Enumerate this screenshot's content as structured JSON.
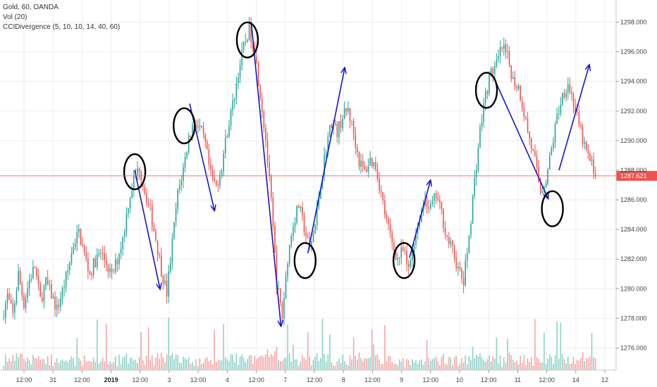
{
  "legend": {
    "symbol": "Gold, 60, OANDA",
    "volume": "Vol (20)",
    "indicator": "CCIDivergence (5, 10, 10, 14, 40, 60)"
  },
  "colors": {
    "up": "#26a69a",
    "down": "#ef5350",
    "vol_up": "#8fd2c8",
    "vol_down": "#f4a7a7",
    "arrow": "#1515c8",
    "circle": "#000000",
    "price_line": "#ef5350",
    "grid": "#eeeeee"
  },
  "chart_data": {
    "type": "candlestick",
    "title": "",
    "ylim": [
      1274.5,
      1299.5
    ],
    "y_ticks": [
      1276,
      1278,
      1280,
      1282,
      1284,
      1286,
      1288,
      1290,
      1292,
      1294,
      1296,
      1298
    ],
    "x_tick_labels": [
      {
        "label": "12:00",
        "bold": false
      },
      {
        "label": "31",
        "bold": false
      },
      {
        "label": "12:00",
        "bold": false
      },
      {
        "label": "2019",
        "bold": true
      },
      {
        "label": "12:00",
        "bold": false
      },
      {
        "label": "3",
        "bold": false
      },
      {
        "label": "12:00",
        "bold": false
      },
      {
        "label": "4",
        "bold": false
      },
      {
        "label": "12:00",
        "bold": false
      },
      {
        "label": "7",
        "bold": false
      },
      {
        "label": "12:00",
        "bold": false
      },
      {
        "label": "8",
        "bold": false
      },
      {
        "label": "12:00",
        "bold": false
      },
      {
        "label": "9",
        "bold": false
      },
      {
        "label": "12:00",
        "bold": false
      },
      {
        "label": "10",
        "bold": false
      },
      {
        "label": "12:00",
        "bold": false
      },
      {
        "label": "11",
        "bold": false
      },
      {
        "label": "12:00",
        "bold": false
      },
      {
        "label": "14",
        "bold": false
      },
      {
        "label": "12",
        "bold": false
      }
    ],
    "last_price": "1287.621",
    "last_price_value": 1287.621,
    "close_path": [
      1278.0,
      1279.5,
      1278.2,
      1281.0,
      1279.0,
      1280.6,
      1281.5,
      1279.2,
      1280.4,
      1279.6,
      1278.6,
      1279.8,
      1281.2,
      1283.0,
      1283.8,
      1282.3,
      1281.0,
      1281.9,
      1282.4,
      1281.7,
      1280.8,
      1282.0,
      1283.4,
      1285.8,
      1287.4,
      1288.2,
      1286.6,
      1285.2,
      1283.4,
      1281.3,
      1279.7,
      1283.1,
      1286.4,
      1288.1,
      1290.2,
      1291.3,
      1290.8,
      1289.7,
      1287.6,
      1286.9,
      1288.3,
      1290.7,
      1292.4,
      1294.6,
      1296.3,
      1297.6,
      1296.1,
      1293.2,
      1290.1,
      1285.8,
      1280.4,
      1278.1,
      1282.1,
      1284.4,
      1285.6,
      1284.1,
      1282.6,
      1284.3,
      1287.1,
      1289.6,
      1291.3,
      1290.6,
      1291.6,
      1292.1,
      1290.5,
      1288.6,
      1287.9,
      1288.7,
      1288.3,
      1286.4,
      1284.5,
      1283.1,
      1282.0,
      1282.6,
      1281.2,
      1283.3,
      1284.8,
      1286.1,
      1285.4,
      1286.3,
      1285.1,
      1283.4,
      1282.6,
      1281.3,
      1280.4,
      1283.6,
      1287.3,
      1290.7,
      1293.1,
      1294.6,
      1295.1,
      1296.3,
      1295.6,
      1294.1,
      1293.6,
      1291.9,
      1290.1,
      1288.6,
      1286.6,
      1287.4,
      1289.4,
      1291.6,
      1293.1,
      1293.9,
      1292.6,
      1291.0,
      1289.6,
      1288.6,
      1287.9
    ],
    "annotations": {
      "circles": [
        {
          "index": 24,
          "price": 1287.9
        },
        {
          "index": 33,
          "price": 1291.0
        },
        {
          "index": 44.5,
          "price": 1296.8
        },
        {
          "index": 55,
          "price": 1281.9
        },
        {
          "index": 73,
          "price": 1281.9
        },
        {
          "index": 88,
          "price": 1293.4
        },
        {
          "index": 100,
          "price": 1285.4
        }
      ],
      "arrows": [
        {
          "from": [
            24,
            1288.0
          ],
          "to": [
            28.6,
            1280.0
          ]
        },
        {
          "from": [
            34.0,
            1292.5
          ],
          "to": [
            38.5,
            1285.3
          ]
        },
        {
          "from": [
            45.2,
            1298.0
          ],
          "to": [
            50.6,
            1277.5
          ]
        },
        {
          "from": [
            55.5,
            1282.4
          ],
          "to": [
            62.2,
            1294.9
          ]
        },
        {
          "from": [
            74.0,
            1282.1
          ],
          "to": [
            77.8,
            1287.3
          ]
        },
        {
          "from": [
            89.4,
            1294.2
          ],
          "to": [
            99.2,
            1286.1
          ]
        },
        {
          "from": [
            101.2,
            1288.0
          ],
          "to": [
            106.7,
            1295.1
          ]
        }
      ]
    }
  }
}
